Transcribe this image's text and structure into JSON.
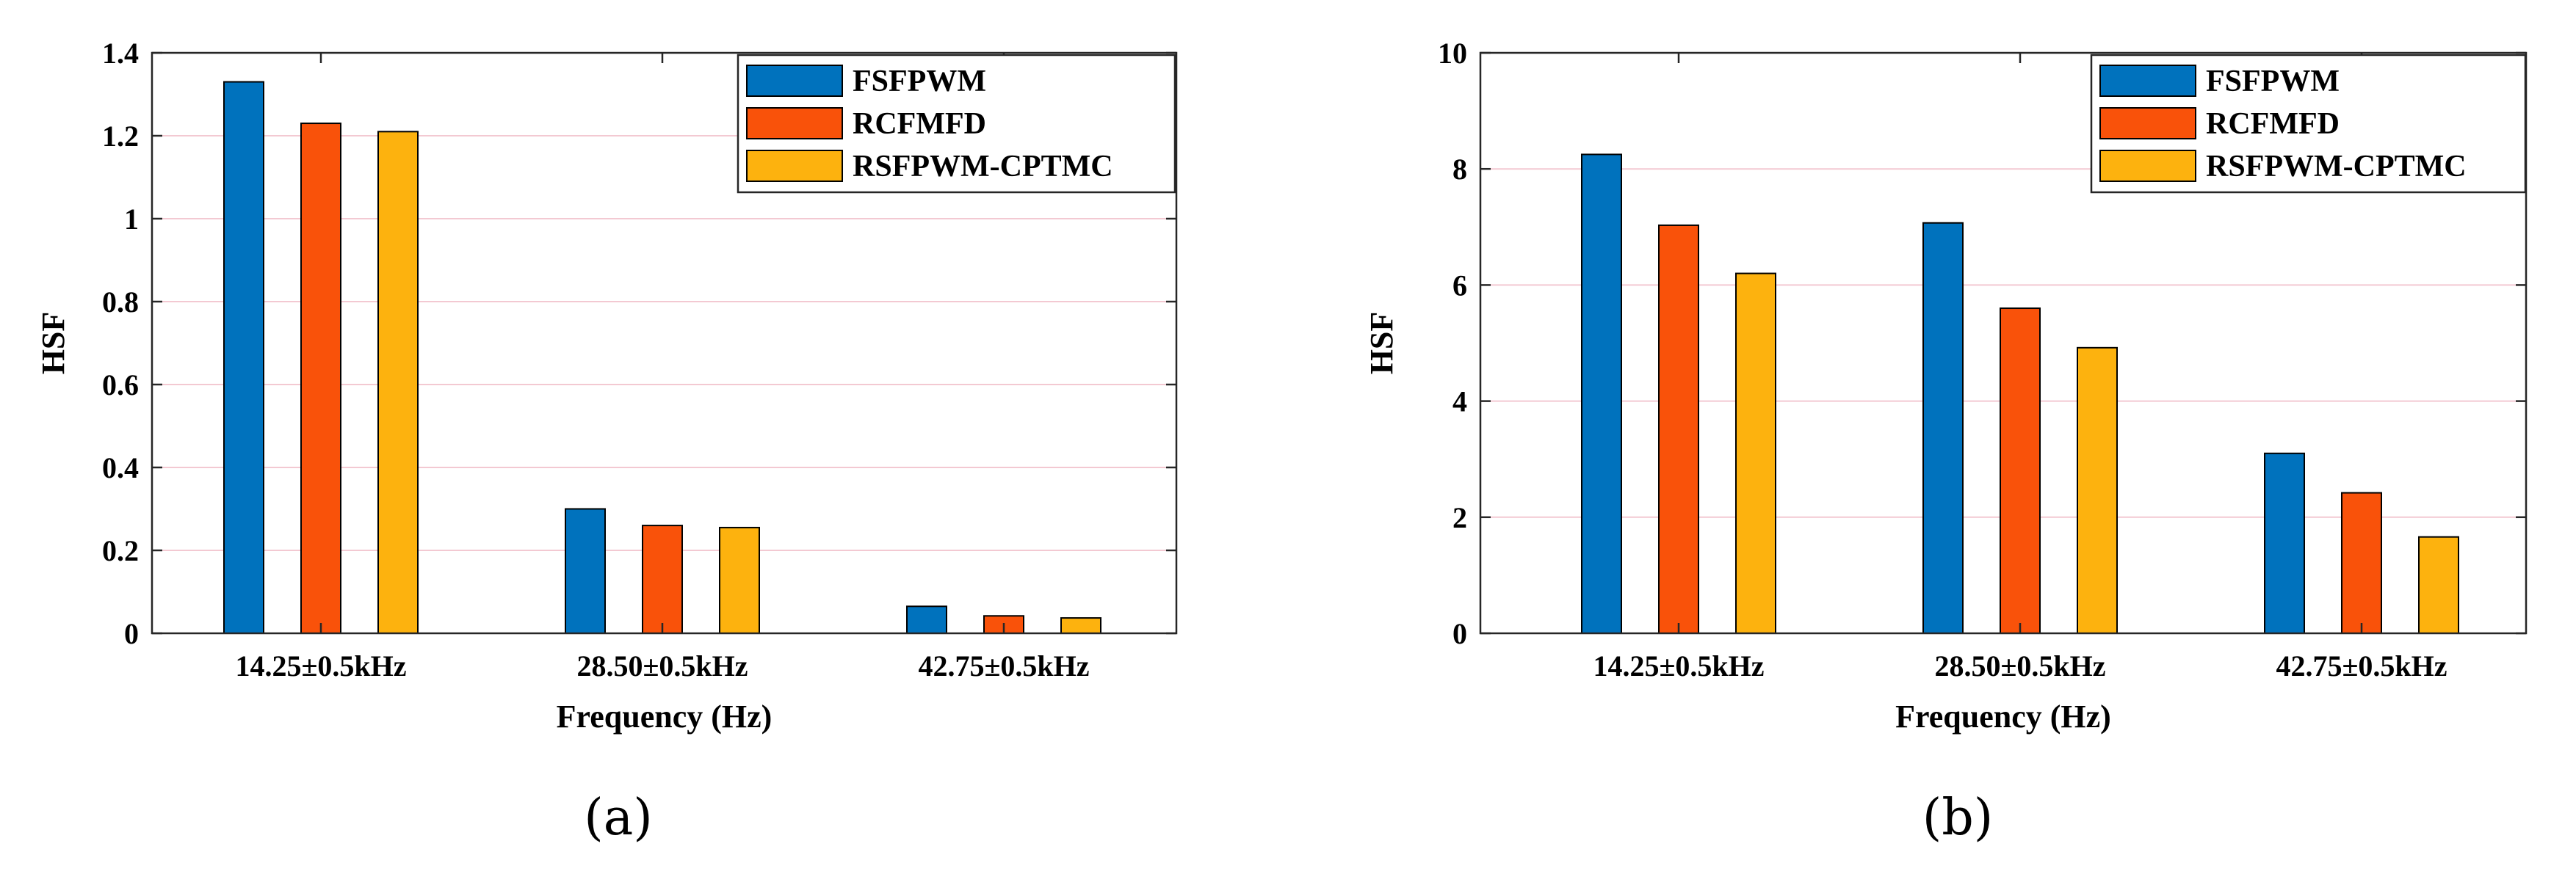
{
  "chart_data": [
    {
      "type": "bar",
      "panel_label": "(a)",
      "xlabel": "Frequency (Hz)",
      "ylabel": "HSF",
      "categories": [
        "14.25±0.5kHz",
        "28.50±0.5kHz",
        "42.75±0.5kHz"
      ],
      "ylim": [
        0,
        1.4
      ],
      "yticks": [
        0,
        0.2,
        0.4,
        0.6,
        0.8,
        1,
        1.2,
        1.4
      ],
      "ytick_labels": [
        "0",
        "0.2",
        "0.4",
        "0.6",
        "0.8",
        "1",
        "1.2",
        "1.4"
      ],
      "grid": true,
      "legend_position": "top-right",
      "series": [
        {
          "name": "FSFPWM",
          "color": "#0072BD",
          "values": [
            1.33,
            0.3,
            0.065
          ]
        },
        {
          "name": "RCFMFD",
          "color": "#F9520A",
          "values": [
            1.23,
            0.26,
            0.042
          ]
        },
        {
          "name": "RSFPWM-CPTMC",
          "color": "#FDB20E",
          "values": [
            1.21,
            0.255,
            0.037
          ]
        }
      ]
    },
    {
      "type": "bar",
      "panel_label": "(b)",
      "xlabel": "Frequency (Hz)",
      "ylabel": "HSF",
      "categories": [
        "14.25±0.5kHz",
        "28.50±0.5kHz",
        "42.75±0.5kHz"
      ],
      "ylim": [
        0,
        10
      ],
      "yticks": [
        0,
        2,
        4,
        6,
        8,
        10
      ],
      "ytick_labels": [
        "0",
        "2",
        "4",
        "6",
        "8",
        "10"
      ],
      "grid": true,
      "legend_position": "top-right",
      "series": [
        {
          "name": "FSFPWM",
          "color": "#0072BD",
          "values": [
            8.25,
            7.07,
            3.1
          ]
        },
        {
          "name": "RCFMFD",
          "color": "#F9520A",
          "values": [
            7.03,
            5.6,
            2.42
          ]
        },
        {
          "name": "RSFPWM-CPTMC",
          "color": "#FDB20E",
          "values": [
            6.2,
            4.92,
            1.66
          ]
        }
      ]
    }
  ]
}
